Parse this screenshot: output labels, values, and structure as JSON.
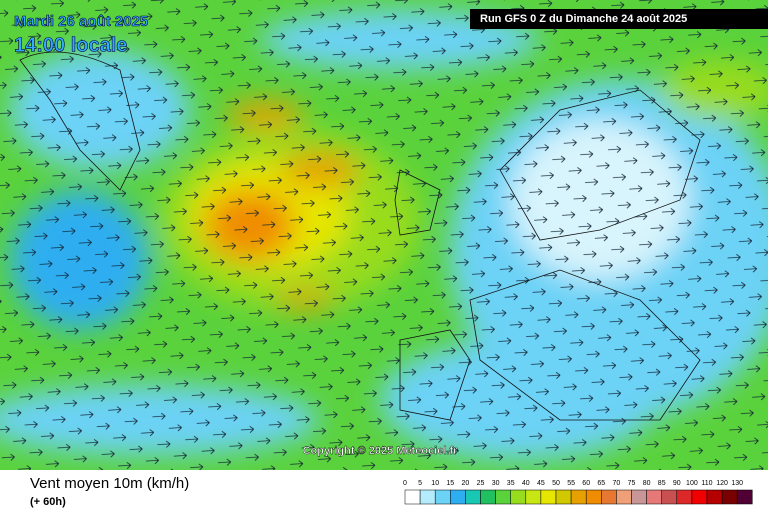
{
  "header": {
    "date": "Mardi 26 août 2025",
    "time": "14:00 locale",
    "run": "Run GFS 0 Z du Dimanche 24 août 2025"
  },
  "copyright": "Copyright © 2025 Meteociel.fr",
  "footer": {
    "title": "Vent moyen 10m (km/h)",
    "lead": "(+ 60h)"
  },
  "legend": [
    {
      "value": 0,
      "color": "#ffffff"
    },
    {
      "value": 5,
      "color": "#b4ecfc"
    },
    {
      "value": 10,
      "color": "#6cd2f6"
    },
    {
      "value": 15,
      "color": "#2eaef0"
    },
    {
      "value": 20,
      "color": "#18c8b4"
    },
    {
      "value": 25,
      "color": "#20c060"
    },
    {
      "value": 30,
      "color": "#5ad23c"
    },
    {
      "value": 35,
      "color": "#98dc1e"
    },
    {
      "value": 40,
      "color": "#c8e614"
    },
    {
      "value": 45,
      "color": "#e6e600"
    },
    {
      "value": 50,
      "color": "#d2c800"
    },
    {
      "value": 55,
      "color": "#e6a000"
    },
    {
      "value": 60,
      "color": "#f08c00"
    },
    {
      "value": 65,
      "color": "#e67832"
    },
    {
      "value": 70,
      "color": "#f0a078"
    },
    {
      "value": 75,
      "color": "#c89696"
    },
    {
      "value": 80,
      "color": "#e67878"
    },
    {
      "value": 85,
      "color": "#c85050"
    },
    {
      "value": 90,
      "color": "#dc2828"
    },
    {
      "value": 100,
      "color": "#f00000"
    },
    {
      "value": 110,
      "color": "#b40000"
    },
    {
      "value": 120,
      "color": "#780000"
    },
    {
      "value": 130,
      "color": "#500032"
    }
  ]
}
